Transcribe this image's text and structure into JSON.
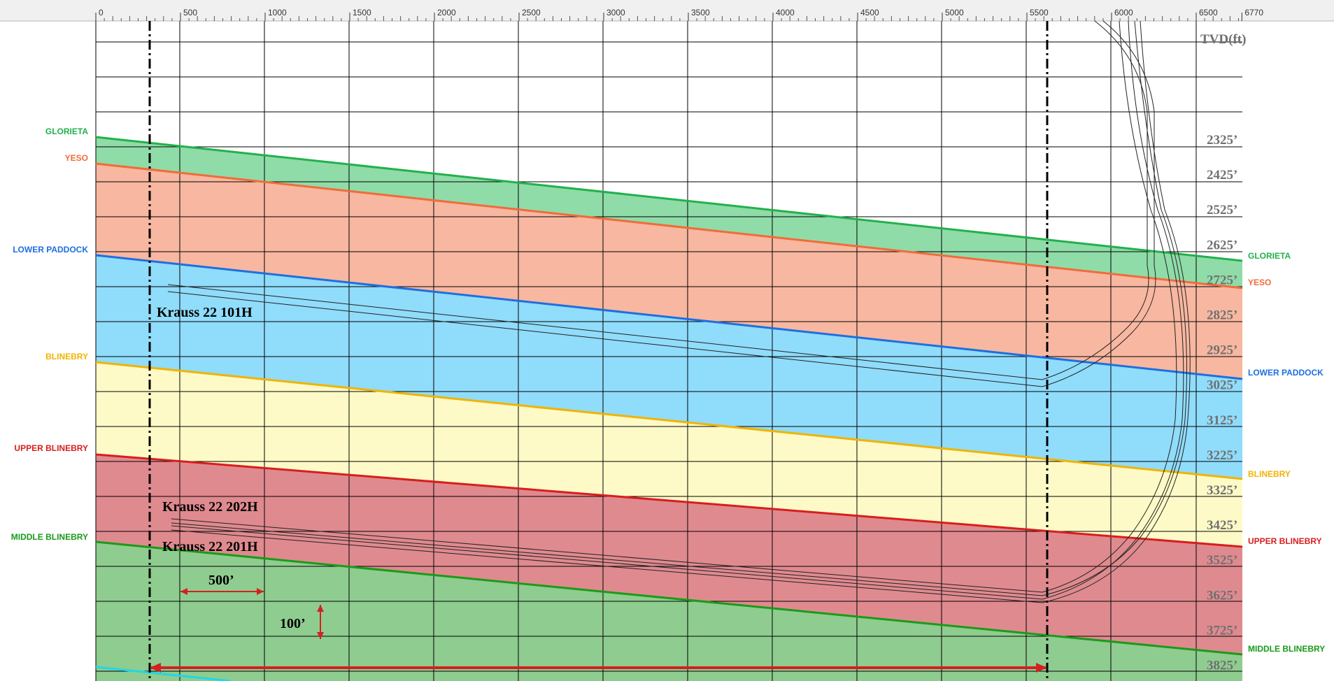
{
  "top_axis": {
    "ticks": [
      "0",
      "500",
      "1000",
      "1500",
      "2000",
      "2500",
      "3000",
      "3500",
      "4000",
      "4500",
      "5000",
      "5500",
      "6000",
      "6500",
      "6770"
    ],
    "min": 0,
    "max": 6770
  },
  "tvd_header": "TVD(ft)",
  "tvd_labels": [
    "2325’",
    "2425’",
    "2525’",
    "2625’",
    "2725’",
    "2825’",
    "2925’",
    "3025’",
    "3125’",
    "3225’",
    "3325’",
    "3425’",
    "3525’",
    "3625’",
    "3725’",
    "3825’"
  ],
  "formations": [
    {
      "name": "GLORIETA",
      "color": "#22b14c"
    },
    {
      "name": "YESO",
      "color": "#f26b3a"
    },
    {
      "name": "LOWER PADDOCK",
      "color": "#1e6fe0"
    },
    {
      "name": "BLINEBRY",
      "color": "#f0b400"
    },
    {
      "name": "UPPER BLINEBRY",
      "color": "#d81e1e"
    },
    {
      "name": "MIDDLE BLINEBRY",
      "color": "#1a9b1a"
    }
  ],
  "zone_colors": [
    "#8fdca8",
    "#f8b7a0",
    "#90dcfb",
    "#fefac7",
    "#df8a8f",
    "#8fcc8f"
  ],
  "wells": [
    "Krauss 22 101H",
    "Krauss 22 202H",
    "Krauss 22 201H"
  ],
  "scale": {
    "horizontal": "500’",
    "vertical": "100’"
  }
}
